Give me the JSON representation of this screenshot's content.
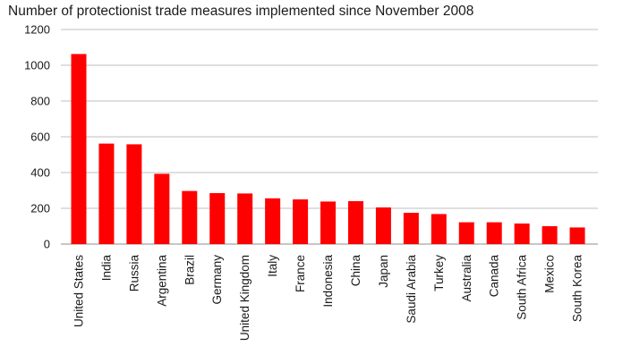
{
  "chart_data": {
    "type": "bar",
    "title": "Number of protectionist trade measures implemented since November 2008",
    "xlabel": "",
    "ylabel": "",
    "categories": [
      "United States",
      "India",
      "Russia",
      "Argentina",
      "Brazil",
      "Germany",
      "United Kingdom",
      "Italy",
      "France",
      "Indonesia",
      "China",
      "Japan",
      "Saudi Arabia",
      "Turkey",
      "Australia",
      "Canada",
      "South Africa",
      "Mexico",
      "South Korea"
    ],
    "values": [
      1063,
      562,
      558,
      393,
      297,
      285,
      283,
      256,
      250,
      238,
      240,
      205,
      175,
      168,
      122,
      122,
      115,
      100,
      93
    ],
    "ylim": [
      0,
      1200
    ],
    "yticks": [
      0,
      200,
      400,
      600,
      800,
      1000,
      1200
    ],
    "grid": true,
    "legend": "none",
    "bar_color": "#ff0000",
    "grid_color": "#bfbfbf"
  }
}
